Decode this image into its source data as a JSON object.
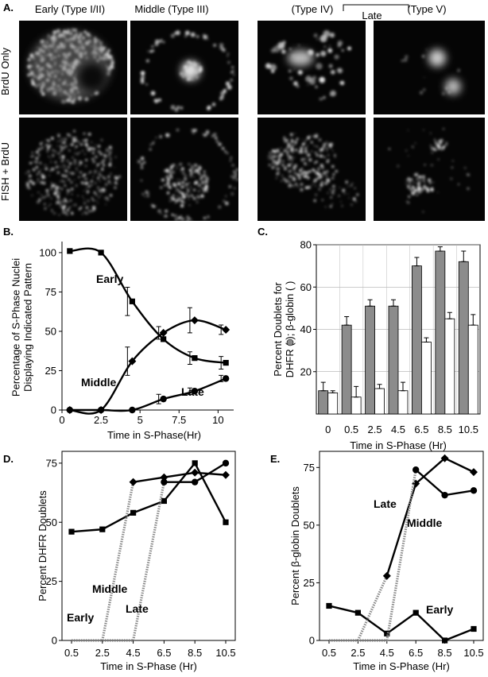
{
  "panel_a": {
    "letter": "A.",
    "columns": [
      "Early (Type I/II)",
      "Middle (Type III)",
      "(Type IV)",
      "(Type V)"
    ],
    "late_label": "Late",
    "rows": [
      "BrdU Only",
      "FISH + BrdU"
    ]
  },
  "chart_data": [
    {
      "id": "B",
      "letter": "B.",
      "type": "line",
      "xlabel": "Time in S-Phase(Hr)",
      "ylabel": [
        "Percentage of S-Phase Nuclei",
        "Displaying Indicated Pattern"
      ],
      "xlim": [
        0,
        11
      ],
      "ylim": [
        0,
        105
      ],
      "xticks": [
        0,
        2.5,
        5,
        7.5,
        10
      ],
      "xtick_labels": [
        "0",
        "2.5",
        "5",
        "7.5",
        "10"
      ],
      "yticks": [
        0,
        25,
        50,
        75,
        100
      ],
      "ytick_labels": [
        "0",
        "25",
        "50",
        "75",
        "100"
      ],
      "series": [
        {
          "name": "Early",
          "marker": "square",
          "x": [
            0.5,
            2.5,
            4.5,
            6.5,
            8.5,
            10.5
          ],
          "y": [
            101,
            100,
            69,
            45,
            33,
            30
          ],
          "err": [
            0,
            0,
            9,
            0,
            4,
            4
          ]
        },
        {
          "name": "Middle",
          "marker": "diamond",
          "x": [
            0.5,
            2.5,
            4.5,
            6.5,
            8.5,
            10.5
          ],
          "y": [
            0,
            0,
            31,
            49,
            57,
            51
          ],
          "err": [
            0,
            0,
            9,
            4,
            8,
            3
          ]
        },
        {
          "name": "Late",
          "marker": "circle",
          "x": [
            0.5,
            2.5,
            4.5,
            6.5,
            8.5,
            10.5
          ],
          "y": [
            0,
            0,
            0,
            7,
            12,
            20
          ],
          "err": [
            0,
            0,
            0,
            3,
            2,
            2
          ]
        }
      ],
      "labels": [
        "Early",
        "Middle",
        "Late"
      ]
    },
    {
      "id": "C",
      "letter": "C.",
      "type": "bar",
      "xlabel": "Time in S-Phase (Hr)",
      "ylabel": [
        "Percent Doublets for",
        "DHFR (",
        "); β-globin (",
        ")"
      ],
      "categories": [
        "0",
        "0.5",
        "2.5",
        "4.5",
        "6.5",
        "8.5",
        "10.5"
      ],
      "ylim": [
        0,
        80
      ],
      "yticks": [
        20,
        40,
        60,
        80
      ],
      "ytick_labels": [
        "20",
        "40",
        "60",
        "80"
      ],
      "series": [
        {
          "name": "DHFR",
          "color": "#8c8c8c",
          "values": [
            11,
            42,
            51,
            51,
            70,
            77,
            72
          ],
          "err": [
            4,
            4,
            3,
            3,
            4,
            2,
            5
          ]
        },
        {
          "name": "β-globin",
          "color": "#ffffff",
          "values": [
            10,
            8,
            12,
            11,
            34,
            45,
            42
          ],
          "err": [
            1,
            5,
            2,
            4,
            2,
            3,
            5
          ]
        }
      ],
      "grid": true
    },
    {
      "id": "D",
      "letter": "D.",
      "type": "line",
      "xlabel": "Time in S-Phase (Hr)",
      "ylabel": "Percent DHFR Doublets",
      "categories": [
        "0.5",
        "2.5",
        "4.5",
        "6.5",
        "8.5",
        "10.5"
      ],
      "ylim": [
        0,
        80
      ],
      "yticks": [
        0,
        25,
        50,
        75
      ],
      "ytick_labels": [
        "0",
        "25",
        "50",
        "75"
      ],
      "series": [
        {
          "name": "Early",
          "marker": "square",
          "values": [
            46,
            47,
            54,
            59,
            75,
            50
          ]
        },
        {
          "name": "Middle",
          "marker": "diamond",
          "values": [
            0,
            0,
            67,
            69,
            71,
            70
          ]
        },
        {
          "name": "Late",
          "marker": "circle",
          "values": [
            0,
            0,
            0,
            67,
            67,
            75
          ]
        }
      ],
      "labels": [
        "Early",
        "Middle",
        "Late"
      ]
    },
    {
      "id": "E",
      "letter": "E.",
      "type": "line",
      "xlabel": "Time in S-Phase (Hr)",
      "ylabel": "Percent β-globin Doublets",
      "categories": [
        "0.5",
        "2.5",
        "4.5",
        "6.5",
        "8.5",
        "10.5"
      ],
      "ylim": [
        0,
        82
      ],
      "yticks": [
        0,
        25,
        50,
        75
      ],
      "ytick_labels": [
        "0",
        "25",
        "50",
        "75"
      ],
      "series": [
        {
          "name": "Early",
          "marker": "square",
          "values": [
            15,
            12,
            3,
            12,
            0,
            5
          ]
        },
        {
          "name": "Middle",
          "marker": "diamond",
          "values": [
            0,
            0,
            28,
            68,
            79,
            73
          ]
        },
        {
          "name": "Late",
          "marker": "circle",
          "values": [
            0,
            0,
            0,
            74,
            63,
            65
          ]
        }
      ],
      "labels": [
        "Late",
        "Middle",
        "Early"
      ]
    }
  ]
}
